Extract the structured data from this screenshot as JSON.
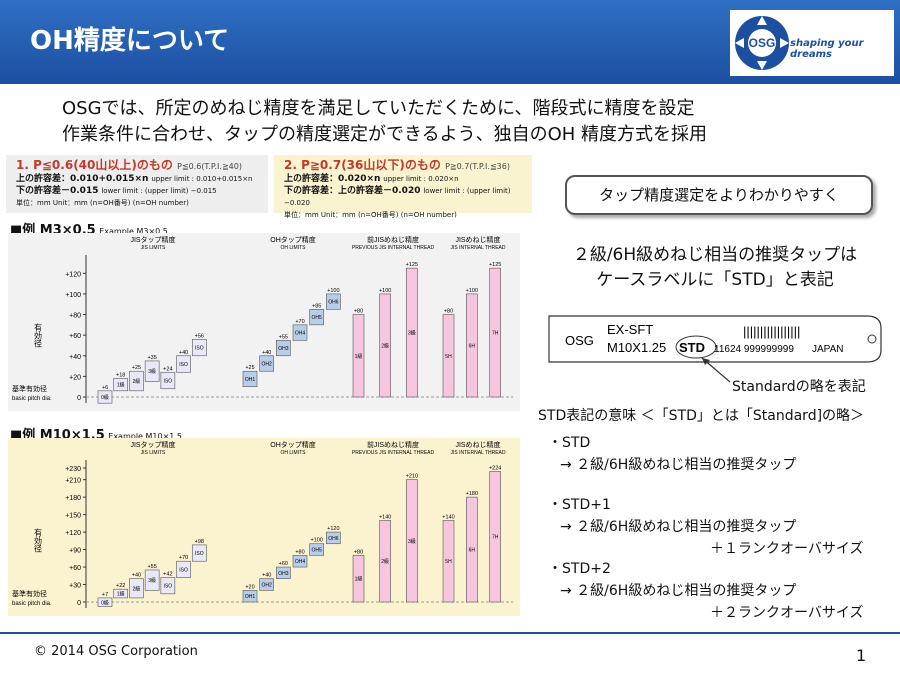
{
  "header": {
    "title": "OH精度について",
    "tagline": "shaping your dreams",
    "logo_text": "OSG"
  },
  "intro": [
    "OSGでは、所定のめねじ精度を満足していただくために、階段式に精度を設定",
    "作業条件に合わせ、タップの精度選定ができるよう、独自のOH 精度方式を採用"
  ],
  "box1": {
    "title": "1. P≦0.6(40山以上)のもの",
    "title_en": "P≦0.6(T.P.I.≧40)",
    "upper": "上の許容差：0.010+0.015×n",
    "upper_en": "upper limit : 0.010+0.015×n",
    "lower": "下の許容差－0.015",
    "lower_en": "lower limit : (upper limit) −0.015",
    "unit": "単位：mm  Unit：mm",
    "n": "(n=OH番号)  (n=OH number)"
  },
  "box2": {
    "title": "2. P≧0.7(36山以下)のもの",
    "title_en": "P≧0.7(T.P.I.≦36)",
    "upper": "上の許容差：0.020×n",
    "upper_en": "upper limit : 0.020×n",
    "lower": "下の許容差：上の許容差－0.020",
    "lower_en": "lower limit : (upper limit) −0.020",
    "unit": "単位：mm  Unit：mm",
    "n": "(n=OH番号)  (n=OH number)"
  },
  "ex1": {
    "label": "■例  M3×0.5",
    "label_en": "Example M3×0.5"
  },
  "ex2": {
    "label": "■例  M10×1.5",
    "label_en": "Example M10×1.5"
  },
  "chart_data": [
    {
      "type": "bar",
      "title": "M3×0.5",
      "ylabel": "有効径 pitch dia. (μm)",
      "base_label": "基準有効径 basic pitch dia.",
      "ylim": [
        0,
        130
      ],
      "yticks": [
        0,
        20,
        40,
        60,
        80,
        100,
        120
      ],
      "groups": [
        {
          "name": "JISタップ精度",
          "name_en": "JIS LIMITS"
        },
        {
          "name": "OHタップ精度",
          "name_en": "OH LIMITS"
        },
        {
          "name": "前JISめねじ精度",
          "name_en": "PREVIOUS JIS INTERNAL THREAD"
        },
        {
          "name": "JISめねじ精度",
          "name_en": "JIS INTERNAL THREAD"
        }
      ],
      "bars": [
        {
          "label": "0級",
          "lo": -6,
          "hi": 6,
          "g": 0
        },
        {
          "label": "1級",
          "lo": 6,
          "hi": 18,
          "g": 0
        },
        {
          "label": "2級",
          "lo": 6,
          "hi": 25,
          "g": 0
        },
        {
          "label": "3級",
          "lo": 15,
          "hi": 35,
          "g": 0
        },
        {
          "label": "ISO 1",
          "lo": 8,
          "hi": 24,
          "g": 0
        },
        {
          "label": "ISO 2",
          "lo": 24,
          "hi": 40,
          "g": 0
        },
        {
          "label": "ISO 3",
          "lo": 40,
          "hi": 56,
          "g": 0
        },
        {
          "label": "OH1",
          "lo": 10,
          "hi": 25,
          "g": 1
        },
        {
          "label": "OH2",
          "lo": 25,
          "hi": 40,
          "g": 1
        },
        {
          "label": "OH3",
          "lo": 40,
          "hi": 55,
          "g": 1
        },
        {
          "label": "OH4",
          "lo": 55,
          "hi": 70,
          "g": 1
        },
        {
          "label": "OH5",
          "lo": 70,
          "hi": 85,
          "g": 1
        },
        {
          "label": "OH6",
          "lo": 85,
          "hi": 100,
          "g": 1
        },
        {
          "label": "1級 Class 1",
          "lo": 0,
          "hi": 80,
          "g": 2
        },
        {
          "label": "2級 Class 2",
          "lo": 0,
          "hi": 100,
          "g": 2
        },
        {
          "label": "3級 Class 3",
          "lo": 0,
          "hi": 125,
          "g": 2
        },
        {
          "label": "5H",
          "lo": 0,
          "hi": 80,
          "g": 3
        },
        {
          "label": "6H",
          "lo": 0,
          "hi": 100,
          "g": 3
        },
        {
          "label": "7H",
          "lo": 0,
          "hi": 125,
          "g": 3
        }
      ]
    },
    {
      "type": "bar",
      "title": "M10×1.5",
      "ylabel": "有効径 pitch dia. (μm)",
      "base_label": "基準有効径 basic pitch dia.",
      "ylim": [
        0,
        230
      ],
      "yticks": [
        0,
        30,
        60,
        90,
        120,
        150,
        180,
        210,
        230
      ],
      "groups": [
        {
          "name": "JISタップ精度",
          "name_en": "JIS LIMITS"
        },
        {
          "name": "OHタップ精度",
          "name_en": "OH LIMITS"
        },
        {
          "name": "前JISめねじ精度",
          "name_en": "PREVIOUS JIS INTERNAL THREAD"
        },
        {
          "name": "JISめねじ精度",
          "name_en": "JIS INTERNAL THREAD"
        }
      ],
      "bars": [
        {
          "label": "0級",
          "lo": -8,
          "hi": 7,
          "g": 0
        },
        {
          "label": "1級",
          "lo": 7,
          "hi": 22,
          "g": 0
        },
        {
          "label": "2級",
          "lo": 7,
          "hi": 40,
          "g": 0
        },
        {
          "label": "3級",
          "lo": 20,
          "hi": 55,
          "g": 0
        },
        {
          "label": "ISO 1",
          "lo": 14,
          "hi": 42,
          "g": 0
        },
        {
          "label": "ISO 2",
          "lo": 42,
          "hi": 70,
          "g": 0
        },
        {
          "label": "ISO 3",
          "lo": 70,
          "hi": 98,
          "g": 0
        },
        {
          "label": "OH1",
          "lo": 0,
          "hi": 20,
          "g": 1
        },
        {
          "label": "OH2",
          "lo": 20,
          "hi": 40,
          "g": 1
        },
        {
          "label": "OH3",
          "lo": 40,
          "hi": 60,
          "g": 1
        },
        {
          "label": "OH4",
          "lo": 60,
          "hi": 80,
          "g": 1
        },
        {
          "label": "OH5",
          "lo": 80,
          "hi": 100,
          "g": 1
        },
        {
          "label": "OH6",
          "lo": 100,
          "hi": 120,
          "g": 1
        },
        {
          "label": "1級 Class 1",
          "lo": 0,
          "hi": 80,
          "g": 2
        },
        {
          "label": "2級 Class 2",
          "lo": 0,
          "hi": 140,
          "g": 2
        },
        {
          "label": "3級 Class 3",
          "lo": 0,
          "hi": 210,
          "g": 2
        },
        {
          "label": "5H",
          "lo": 0,
          "hi": 140,
          "g": 3
        },
        {
          "label": "6H",
          "lo": 0,
          "hi": 180,
          "g": 3
        },
        {
          "label": "7H",
          "lo": 0,
          "hi": 224,
          "g": 3
        }
      ]
    }
  ],
  "callout": "タップ精度選定をよりわかりやすく",
  "headline1": "２級/6H級めねじ相当の推奨タップは",
  "headline2": "ケースラベルに「STD」と表記",
  "label": {
    "brand": "OSG",
    "product": "EX-SFT",
    "size": "M10X1.25",
    "std": "STD",
    "code": "11624 999999999",
    "country": "JAPAN",
    "barcode": "|||||||||||||||||"
  },
  "label_note": "Standardの略を表記",
  "std_meaning": "STD表記の意味  ＜「STD」とは「Standard]の略＞",
  "list": [
    {
      "head": "・STD",
      "line": "→ ２級/6H級めねじ相当の推奨タップ",
      "extra": ""
    },
    {
      "head": "・STD+1",
      "line": "→ ２級/6H級めねじ相当の推奨タップ",
      "extra": "＋１ランクオーバサイズ"
    },
    {
      "head": "・STD+2",
      "line": "→ ２級/6H級めねじ相当の推奨タップ",
      "extra": "＋２ランクオーバサイズ"
    }
  ],
  "footer": {
    "copyright": "© 2014 OSG Corporation",
    "page": "1"
  }
}
